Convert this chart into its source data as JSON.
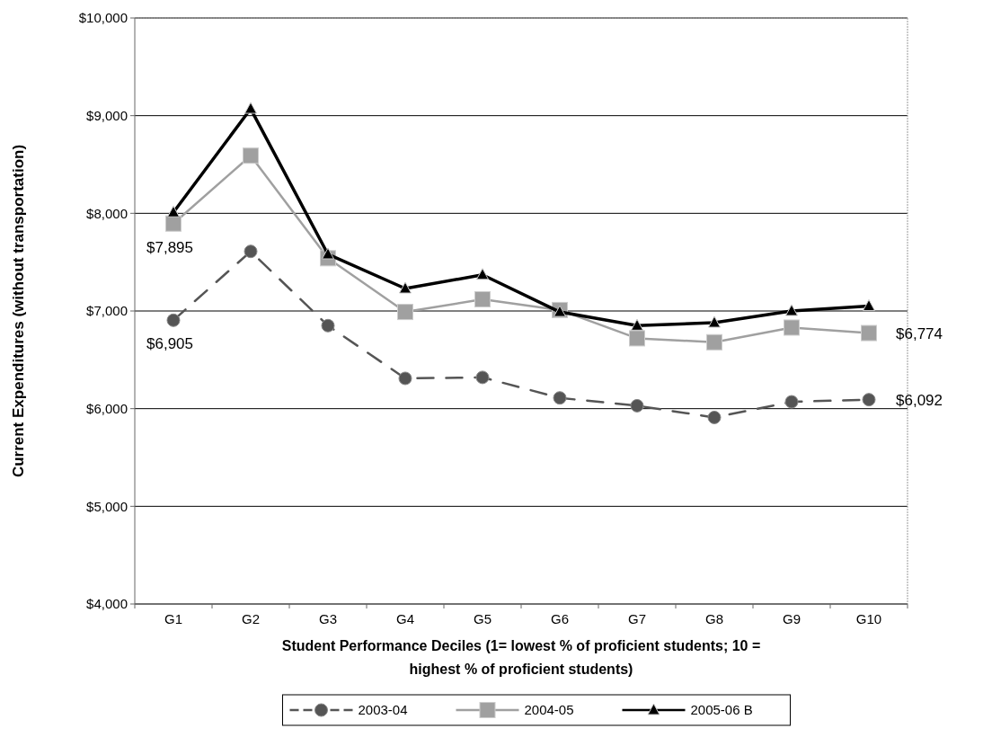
{
  "chart_data": {
    "type": "line",
    "xlabel": "Student Performance Deciles (1= lowest % of proficient students; 10 = highest % of proficient students)",
    "ylabel": "Current Expenditures (without transportation)",
    "categories": [
      "G1",
      "G2",
      "G3",
      "G4",
      "G5",
      "G6",
      "G7",
      "G8",
      "G9",
      "G10"
    ],
    "series": [
      {
        "name": "2003-04",
        "color": "#555555",
        "marker": "circle",
        "line_style": "dashed",
        "values": [
          6905,
          7610,
          6850,
          6310,
          6320,
          6110,
          6030,
          5910,
          6070,
          6092
        ]
      },
      {
        "name": "2004-05",
        "color": "#a0a0a0",
        "marker": "square",
        "line_style": "solid",
        "values": [
          7895,
          8590,
          7540,
          6990,
          7120,
          7010,
          6720,
          6680,
          6830,
          6774
        ]
      },
      {
        "name": "2005-06 B",
        "color": "#000000",
        "marker": "triangle",
        "line_style": "solid",
        "values": [
          8010,
          9070,
          7580,
          7230,
          7370,
          6990,
          6850,
          6880,
          7000,
          7050
        ]
      }
    ],
    "ylim": [
      4000,
      10000
    ],
    "yticks": [
      {
        "value": 4000,
        "label": "$4,000"
      },
      {
        "value": 5000,
        "label": "$5,000"
      },
      {
        "value": 6000,
        "label": "$6,000"
      },
      {
        "value": 7000,
        "label": "$7,000"
      },
      {
        "value": 8000,
        "label": "$8,000"
      },
      {
        "value": 9000,
        "label": "$9,000"
      },
      {
        "value": 10000,
        "label": "$10,000"
      }
    ],
    "grid": "y",
    "legend": "bottom",
    "annotations": [
      {
        "text": "$7,895",
        "x": "G1",
        "y": 7895
      },
      {
        "text": "$6,905",
        "x": "G1",
        "y": 6905
      },
      {
        "text": "$6,774",
        "x": "G10",
        "y": 6774
      },
      {
        "text": "$6,092",
        "x": "G10",
        "y": 6092
      }
    ]
  }
}
